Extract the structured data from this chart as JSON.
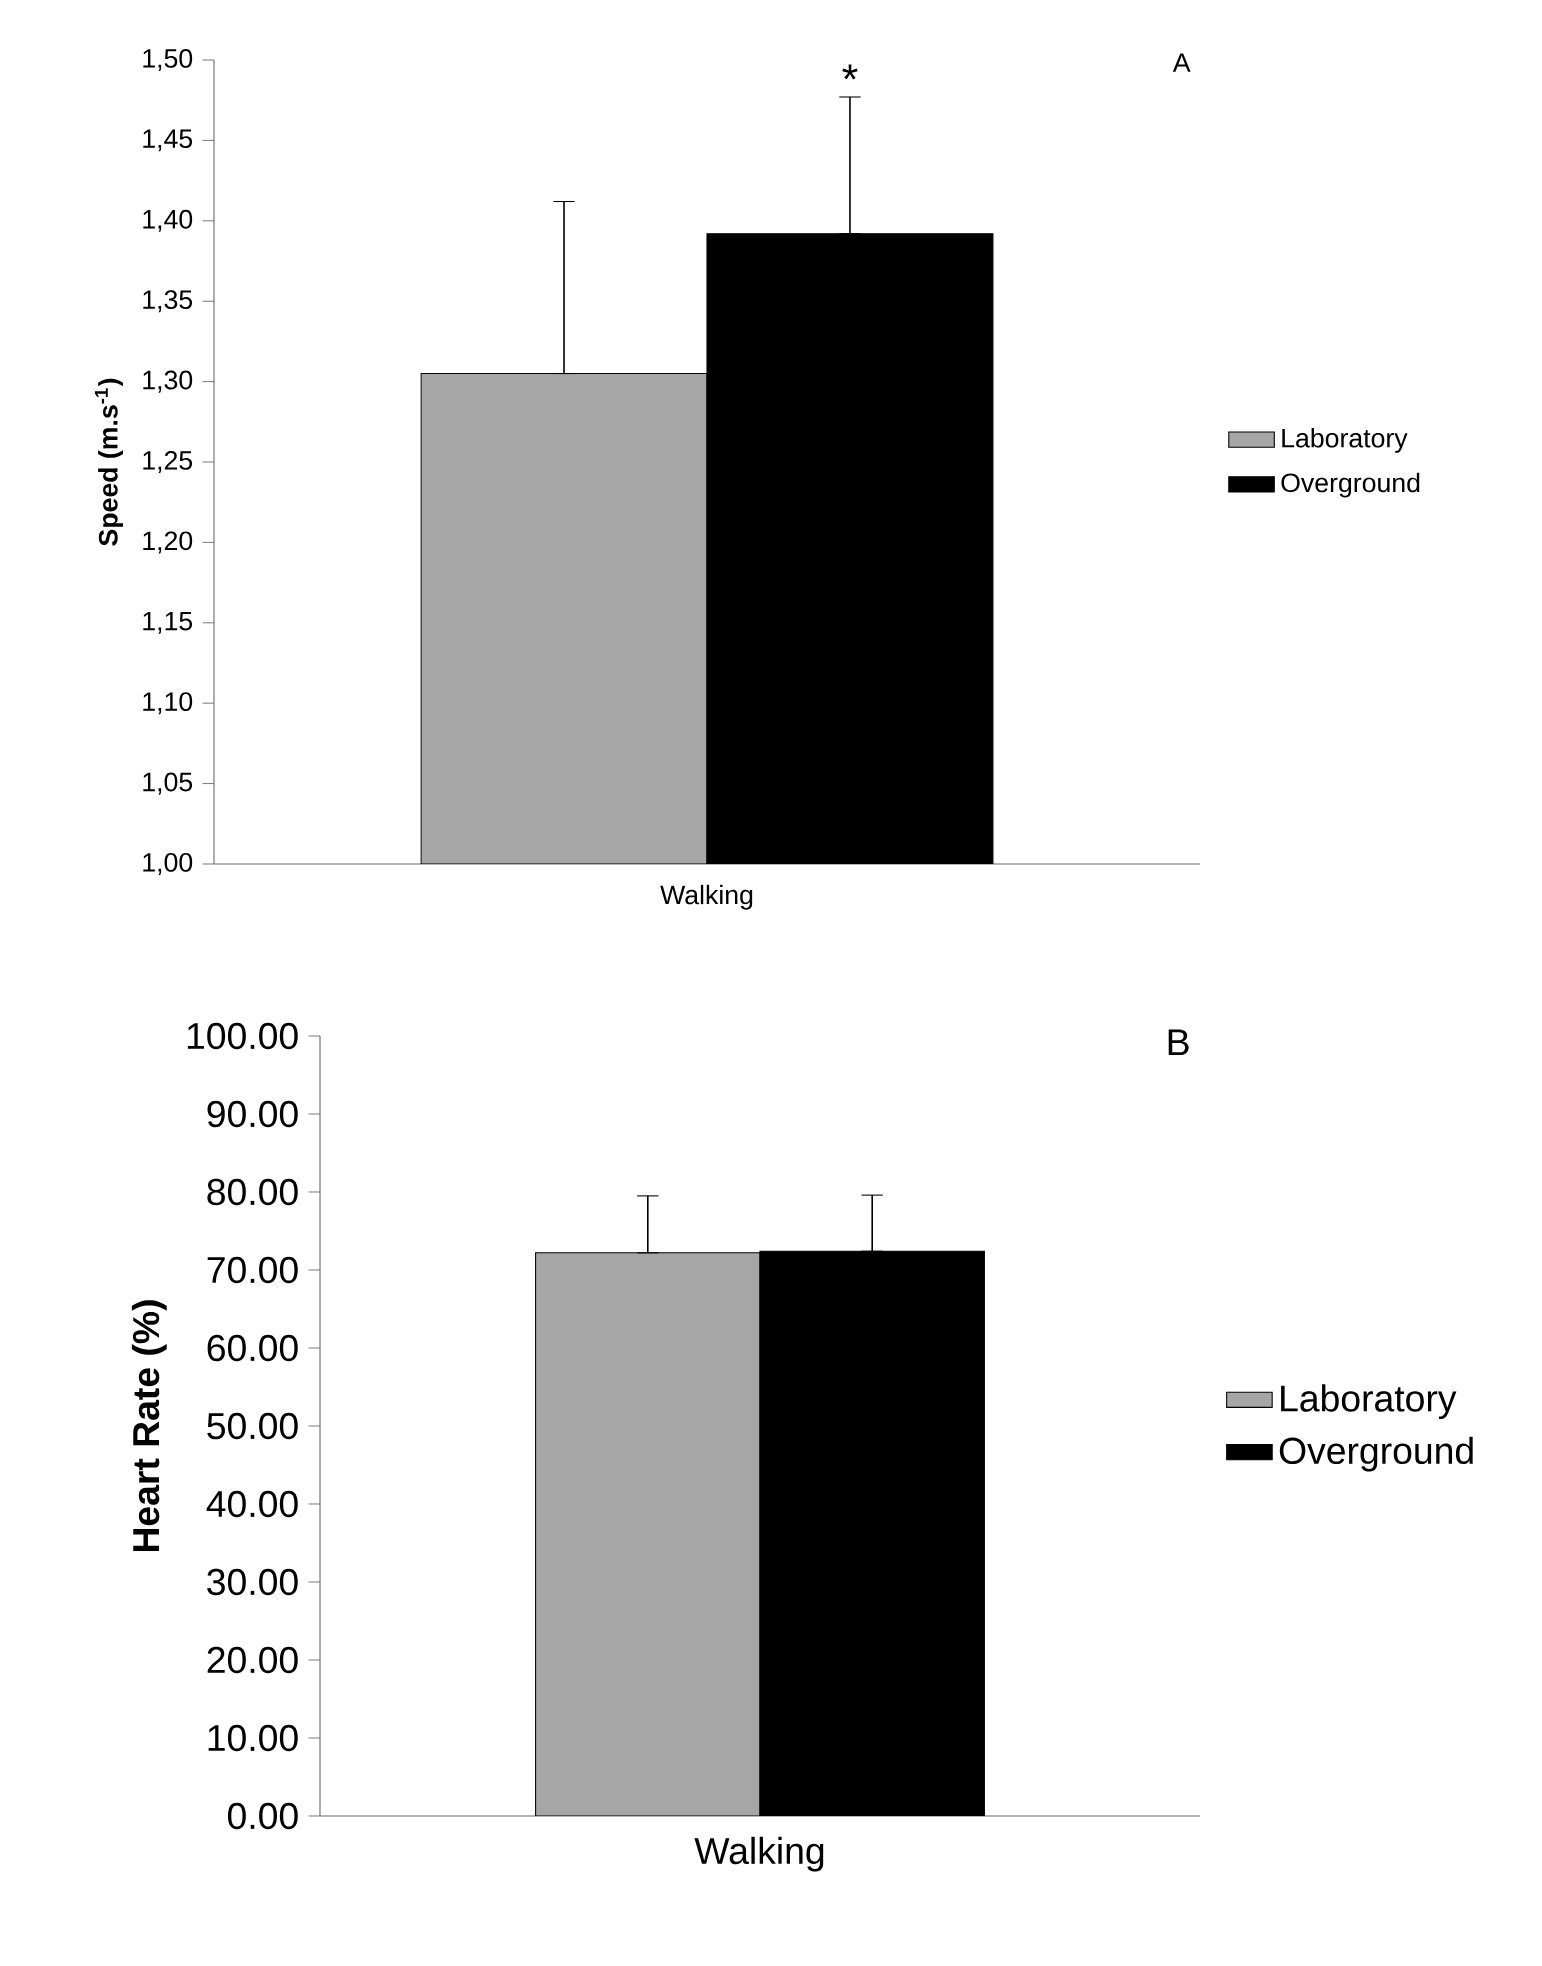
{
  "chart_data": [
    {
      "type": "bar",
      "title": "A",
      "ylabel": "Speed (m.s$^{-1}$)",
      "categories": [
        "Walking"
      ],
      "series": [
        {
          "name": "Laboratory",
          "color": "#a6a6a6",
          "values": [
            1.305
          ],
          "errors": [
            [
              1.305,
              1.412
            ]
          ]
        },
        {
          "name": "Overground",
          "color": "#000000",
          "values": [
            1.392
          ],
          "errors": [
            [
              1.392,
              1.477
            ]
          ]
        }
      ],
      "ylim": [
        1.0,
        1.5
      ],
      "yticks": [
        {
          "value": 1.0,
          "label": "1,00"
        },
        {
          "value": 1.05,
          "label": "1,05"
        },
        {
          "value": 1.1,
          "label": "1,10"
        },
        {
          "value": 1.15,
          "label": "1,15"
        },
        {
          "value": 1.2,
          "label": "1,20"
        },
        {
          "value": 1.25,
          "label": "1,25"
        },
        {
          "value": 1.3,
          "label": "1,30"
        },
        {
          "value": 1.35,
          "label": "1,35"
        },
        {
          "value": 1.4,
          "label": "1,40"
        },
        {
          "value": 1.45,
          "label": "1,45"
        },
        {
          "value": 1.5,
          "label": "1,50"
        }
      ],
      "annotations": [
        "*"
      ],
      "legend": "right",
      "grid": false
    },
    {
      "type": "bar",
      "title": "B",
      "ylabel": "Heart Rate (%)",
      "categories": [
        "Walking"
      ],
      "series": [
        {
          "name": "Laboratory",
          "color": "#a6a6a6",
          "values": [
            72.2
          ],
          "errors": [
            [
              72.2,
              79.5
            ]
          ]
        },
        {
          "name": "Overground",
          "color": "#000000",
          "values": [
            72.4
          ],
          "errors": [
            [
              72.4,
              79.6
            ]
          ]
        }
      ],
      "ylim": [
        0,
        100
      ],
      "yticks": [
        {
          "value": 0,
          "label": "0.00"
        },
        {
          "value": 10,
          "label": "10.00"
        },
        {
          "value": 20,
          "label": "20.00"
        },
        {
          "value": 30,
          "label": "30.00"
        },
        {
          "value": 40,
          "label": "40.00"
        },
        {
          "value": 50,
          "label": "50.00"
        },
        {
          "value": 60,
          "label": "60.00"
        },
        {
          "value": 70,
          "label": "70.00"
        },
        {
          "value": 80,
          "label": "80.00"
        },
        {
          "value": 90,
          "label": "90.00"
        },
        {
          "value": 100,
          "label": "100.00"
        }
      ],
      "legend": "right",
      "grid": false
    }
  ]
}
